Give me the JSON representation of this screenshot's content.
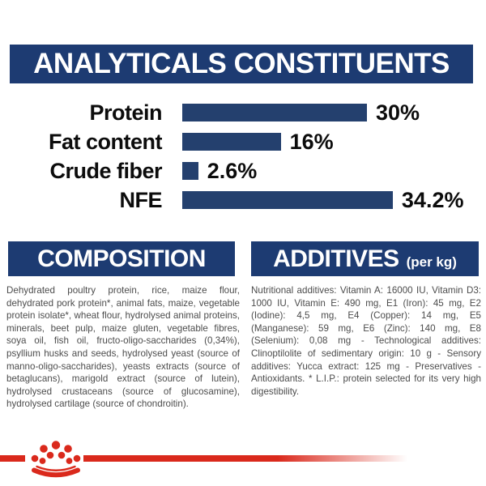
{
  "header": {
    "title": "ANALYTICALS CONSTITUENTS"
  },
  "colors": {
    "navy": "#1d3b72",
    "bar_navy": "#24406e",
    "accent_red": "#da291c",
    "body_text": "#4c4c4c"
  },
  "chart_data": {
    "type": "bar",
    "orientation": "horizontal",
    "title": "ANALYTICALS CONSTITUENTS",
    "categories": [
      "Protein",
      "Fat content",
      "Crude fiber",
      "NFE"
    ],
    "values": [
      30,
      16,
      2.6,
      34.2
    ],
    "value_labels": [
      "30%",
      "16%",
      "2.6%",
      "34.2%"
    ],
    "unit": "%",
    "bar_color": "#24406e",
    "xlim": [
      0,
      40
    ],
    "grid": false,
    "legend": "none"
  },
  "composition": {
    "title": "COMPOSITION",
    "body": "Dehydrated poultry protein, rice, maize flour, dehydrated pork protein*, animal fats, maize, vegetable protein isolate*, wheat flour, hydrolysed animal proteins, minerals, beet pulp, maize gluten, vegetable fibres, soya oil, fish oil, fructo-oligo-saccharides (0,34%), psyllium husks and seeds, hydrolysed yeast (source of manno-oligo-saccharides), yeasts extracts (source of betaglucans), marigold extract (source of lutein), hydrolysed crustaceans (source of glucosamine), hydrolysed cartilage (source of chondroitin)."
  },
  "additives": {
    "title": "ADDITIVES",
    "title_suffix": "(per kg)",
    "body": "Nutritional additives: Vitamin A: 16000 IU, Vitamin D3: 1000 IU, Vitamin E: 490 mg, E1 (Iron): 45 mg, E2 (Iodine): 4,5 mg, E4 (Copper): 14 mg, E5 (Manganese): 59 mg, E6 (Zinc): 140 mg, E8 (Selenium): 0,08 mg - Technological additives: Clinoptilolite of sedimentary origin: 10 g - Sensory additives: Yucca extract: 125 mg - Preservatives - Antioxidants. * L.I.P.: protein selected for its very high digestibility."
  },
  "footer": {
    "logo": "royal-canin-crown",
    "accent_color": "#da291c"
  }
}
